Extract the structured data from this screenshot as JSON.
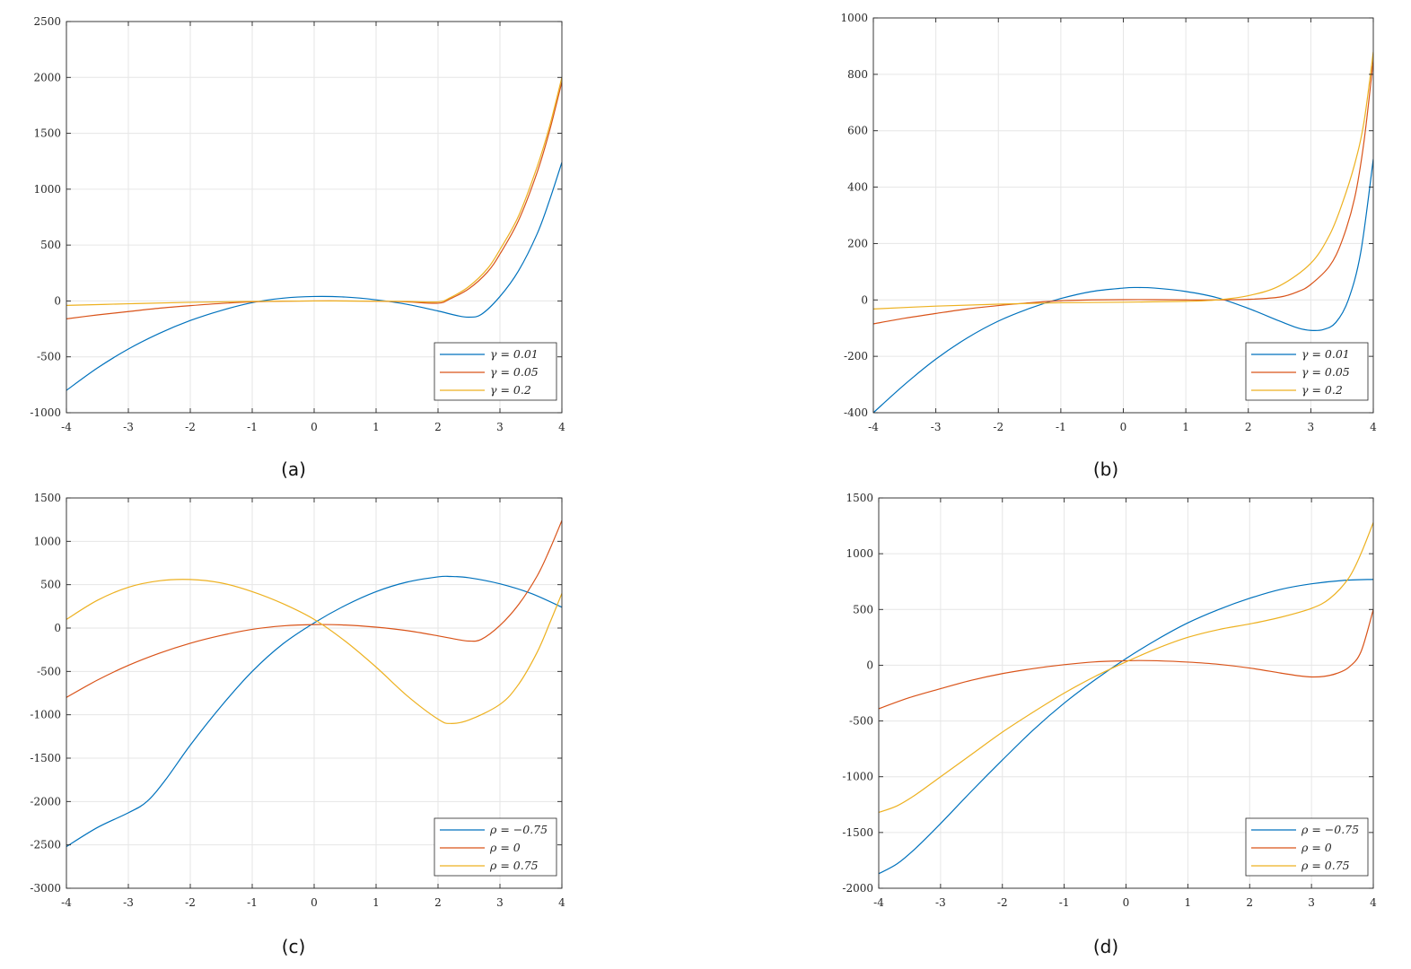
{
  "colors": {
    "blue": "#0072BD",
    "red": "#D95319",
    "yellow": "#EDB120",
    "grid": "#e6e6e6",
    "axis": "#262626"
  },
  "chart_data": [
    {
      "type": "line",
      "caption": "(a)",
      "xlim": [
        -4,
        4
      ],
      "ylim": [
        -1000,
        2500
      ],
      "xticks": [
        "-4",
        "-3",
        "-2",
        "-1",
        "0",
        "1",
        "2",
        "3",
        "4"
      ],
      "yticks": [
        "-1000",
        "-500",
        "0",
        "500",
        "1000",
        "1500",
        "2000",
        "2500"
      ],
      "grid": true,
      "legend_position": "bottom-right",
      "series": [
        {
          "name": "γ = 0.01",
          "color": "#0072BD",
          "x": [
            -4,
            -3.5,
            -3,
            -2.5,
            -2,
            -1.5,
            -1,
            -0.5,
            0,
            0.5,
            1,
            1.5,
            2,
            2.3,
            2.5,
            2.7,
            3,
            3.3,
            3.6,
            3.8,
            4
          ],
          "y": [
            -800,
            -600,
            -430,
            -290,
            -175,
            -85,
            -15,
            25,
            40,
            35,
            10,
            -30,
            -90,
            -130,
            -145,
            -120,
            40,
            270,
            600,
            900,
            1240
          ]
        },
        {
          "name": "γ = 0.05",
          "color": "#D95319",
          "x": [
            -4,
            -3.5,
            -3,
            -2.5,
            -2,
            -1.5,
            -1,
            -0.5,
            0,
            0.5,
            1,
            1.5,
            2,
            2.2,
            2.5,
            2.8,
            3,
            3.3,
            3.6,
            3.8,
            4
          ],
          "y": [
            -160,
            -125,
            -95,
            -65,
            -42,
            -22,
            -8,
            -2,
            0,
            0,
            -2,
            -8,
            -20,
            20,
            110,
            260,
            420,
            720,
            1150,
            1520,
            1960
          ]
        },
        {
          "name": "γ = 0.2",
          "color": "#EDB120",
          "x": [
            -4,
            -3,
            -2,
            -1,
            0,
            1,
            1.5,
            2,
            2.2,
            2.5,
            2.8,
            3,
            3.3,
            3.6,
            3.8,
            4
          ],
          "y": [
            -40,
            -25,
            -12,
            -4,
            0,
            -2,
            -4,
            -8,
            30,
            130,
            290,
            460,
            760,
            1200,
            1560,
            2000
          ]
        }
      ]
    },
    {
      "type": "line",
      "caption": "(b)",
      "xlim": [
        -4,
        4
      ],
      "ylim": [
        -400,
        1000
      ],
      "xticks": [
        "-4",
        "-3",
        "-2",
        "-1",
        "0",
        "1",
        "2",
        "3",
        "4"
      ],
      "yticks": [
        "-400",
        "-200",
        "0",
        "200",
        "400",
        "600",
        "800",
        "1000"
      ],
      "grid": true,
      "legend_position": "bottom-right",
      "series": [
        {
          "name": "γ = 0.01",
          "color": "#0072BD",
          "x": [
            -4,
            -3.5,
            -3,
            -2.5,
            -2,
            -1.5,
            -1,
            -0.5,
            0,
            0.2,
            0.5,
            1,
            1.5,
            2,
            2.5,
            2.8,
            3,
            3.2,
            3.4,
            3.6,
            3.8,
            4
          ],
          "y": [
            -400,
            -300,
            -210,
            -135,
            -75,
            -30,
            5,
            30,
            42,
            44,
            42,
            30,
            8,
            -30,
            -75,
            -100,
            -108,
            -105,
            -80,
            0,
            170,
            500
          ]
        },
        {
          "name": "γ = 0.05",
          "color": "#D95319",
          "x": [
            -4,
            -3.5,
            -3,
            -2.5,
            -2,
            -1.5,
            -1,
            -0.5,
            0,
            0.5,
            1,
            1.5,
            2,
            2.5,
            2.8,
            3,
            3.3,
            3.5,
            3.7,
            3.85,
            4
          ],
          "y": [
            -85,
            -65,
            -48,
            -32,
            -20,
            -10,
            -3,
            0,
            1,
            1,
            0,
            0,
            2,
            10,
            30,
            55,
            120,
            210,
            360,
            560,
            850
          ]
        },
        {
          "name": "γ = 0.2",
          "color": "#EDB120",
          "x": [
            -4,
            -3,
            -2,
            -1,
            0,
            1,
            1.5,
            2,
            2.5,
            3,
            3.3,
            3.5,
            3.7,
            3.85,
            4
          ],
          "y": [
            -32,
            -22,
            -15,
            -10,
            -8,
            -5,
            0,
            15,
            50,
            130,
            230,
            340,
            480,
            630,
            880
          ]
        }
      ]
    },
    {
      "type": "line",
      "caption": "(c)",
      "xlim": [
        -4,
        4
      ],
      "ylim": [
        -3000,
        1500
      ],
      "xticks": [
        "-4",
        "-3",
        "-2",
        "-1",
        "0",
        "1",
        "2",
        "3",
        "4"
      ],
      "yticks": [
        "-3000",
        "-2500",
        "-2000",
        "-1500",
        "-1000",
        "-500",
        "0",
        "500",
        "1000",
        "1500"
      ],
      "grid": true,
      "legend_position": "bottom-right",
      "series": [
        {
          "name": "ρ = −0.75",
          "color": "#0072BD",
          "x": [
            -4,
            -3.5,
            -3,
            -2.7,
            -2.4,
            -2,
            -1.5,
            -1,
            -0.5,
            0,
            0.5,
            1,
            1.5,
            2,
            2.2,
            2.5,
            3,
            3.5,
            4
          ],
          "y": [
            -2520,
            -2300,
            -2130,
            -2000,
            -1750,
            -1350,
            -900,
            -500,
            -180,
            60,
            260,
            420,
            530,
            590,
            595,
            580,
            510,
            400,
            240
          ]
        },
        {
          "name": "ρ = 0",
          "color": "#D95319",
          "x": [
            -4,
            -3.5,
            -3,
            -2.5,
            -2,
            -1.5,
            -1,
            -0.5,
            0,
            0.5,
            1,
            1.5,
            2,
            2.3,
            2.5,
            2.7,
            3,
            3.3,
            3.6,
            3.8,
            4
          ],
          "y": [
            -800,
            -600,
            -430,
            -290,
            -175,
            -85,
            -15,
            25,
            40,
            35,
            10,
            -30,
            -90,
            -130,
            -150,
            -130,
            30,
            270,
            600,
            900,
            1240
          ]
        },
        {
          "name": "ρ = 0.75",
          "color": "#EDB120",
          "x": [
            -4,
            -3.5,
            -3,
            -2.5,
            -2,
            -1.5,
            -1,
            -0.5,
            0,
            0.5,
            1,
            1.5,
            2,
            2.2,
            2.5,
            3,
            3.3,
            3.6,
            3.8,
            4
          ],
          "y": [
            100,
            320,
            470,
            545,
            560,
            520,
            420,
            280,
            100,
            -150,
            -450,
            -780,
            -1050,
            -1100,
            -1060,
            -880,
            -650,
            -280,
            50,
            400
          ]
        }
      ]
    },
    {
      "type": "line",
      "caption": "(d)",
      "xlim": [
        -4,
        4
      ],
      "ylim": [
        -2000,
        1500
      ],
      "xticks": [
        "-4",
        "-3",
        "-2",
        "-1",
        "0",
        "1",
        "2",
        "3",
        "4"
      ],
      "yticks": [
        "-2000",
        "-1500",
        "-1000",
        "-500",
        "0",
        "500",
        "1000",
        "1500"
      ],
      "grid": true,
      "legend_position": "bottom-right",
      "series": [
        {
          "name": "ρ = −0.75",
          "color": "#0072BD",
          "x": [
            -4,
            -3.7,
            -3.4,
            -3,
            -2.5,
            -2,
            -1.5,
            -1,
            -0.5,
            0,
            0.5,
            1,
            1.5,
            2,
            2.5,
            3,
            3.5,
            4
          ],
          "y": [
            -1870,
            -1780,
            -1640,
            -1420,
            -1130,
            -850,
            -580,
            -340,
            -130,
            60,
            230,
            380,
            500,
            600,
            680,
            730,
            760,
            770
          ]
        },
        {
          "name": "ρ = 0",
          "color": "#D95319",
          "x": [
            -4,
            -3.5,
            -3,
            -2.5,
            -2,
            -1.5,
            -1,
            -0.5,
            0,
            0.2,
            0.5,
            1,
            1.5,
            2,
            2.5,
            2.8,
            3,
            3.2,
            3.4,
            3.6,
            3.8,
            4
          ],
          "y": [
            -390,
            -290,
            -210,
            -135,
            -75,
            -30,
            5,
            30,
            40,
            42,
            40,
            28,
            8,
            -25,
            -70,
            -95,
            -105,
            -100,
            -75,
            -20,
            120,
            500
          ]
        },
        {
          "name": "ρ = 0.75",
          "color": "#EDB120",
          "x": [
            -4,
            -3.7,
            -3.4,
            -3,
            -2.5,
            -2,
            -1.5,
            -1,
            -0.5,
            0,
            0.5,
            1,
            1.5,
            2,
            2.5,
            3,
            3.3,
            3.6,
            3.8,
            4
          ],
          "y": [
            -1320,
            -1260,
            -1160,
            -1000,
            -800,
            -600,
            -420,
            -250,
            -100,
            30,
            150,
            250,
            320,
            370,
            430,
            510,
            600,
            780,
            1000,
            1280
          ]
        }
      ]
    }
  ]
}
